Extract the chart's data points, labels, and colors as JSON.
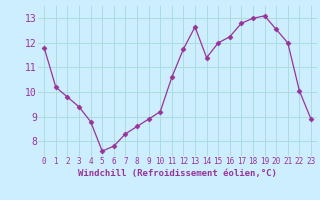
{
  "x": [
    0,
    1,
    2,
    3,
    4,
    5,
    6,
    7,
    8,
    9,
    10,
    11,
    12,
    13,
    14,
    15,
    16,
    17,
    18,
    19,
    20,
    21,
    22,
    23
  ],
  "y": [
    11.8,
    10.2,
    9.8,
    9.4,
    8.8,
    7.6,
    7.8,
    8.3,
    8.6,
    8.9,
    9.2,
    10.6,
    11.75,
    12.65,
    11.4,
    12.0,
    12.25,
    12.8,
    13.0,
    13.1,
    12.55,
    12.0,
    10.05,
    8.9
  ],
  "line_color": "#993399",
  "marker": "D",
  "marker_size": 2.5,
  "background_color": "#cceeff",
  "grid_color": "#aadddd",
  "xlabel": "Windchill (Refroidissement éolien,°C)",
  "xlabel_color": "#993399",
  "ylabel_ticks": [
    8,
    9,
    10,
    11,
    12,
    13
  ],
  "xlim": [
    -0.5,
    23.5
  ],
  "ylim": [
    7.4,
    13.5
  ],
  "xticks": [
    0,
    1,
    2,
    3,
    4,
    5,
    6,
    7,
    8,
    9,
    10,
    11,
    12,
    13,
    14,
    15,
    16,
    17,
    18,
    19,
    20,
    21,
    22,
    23
  ],
  "tick_color": "#993399",
  "tick_fontsize": 5.5,
  "ytick_fontsize": 7,
  "xlabel_fontsize": 6.5
}
